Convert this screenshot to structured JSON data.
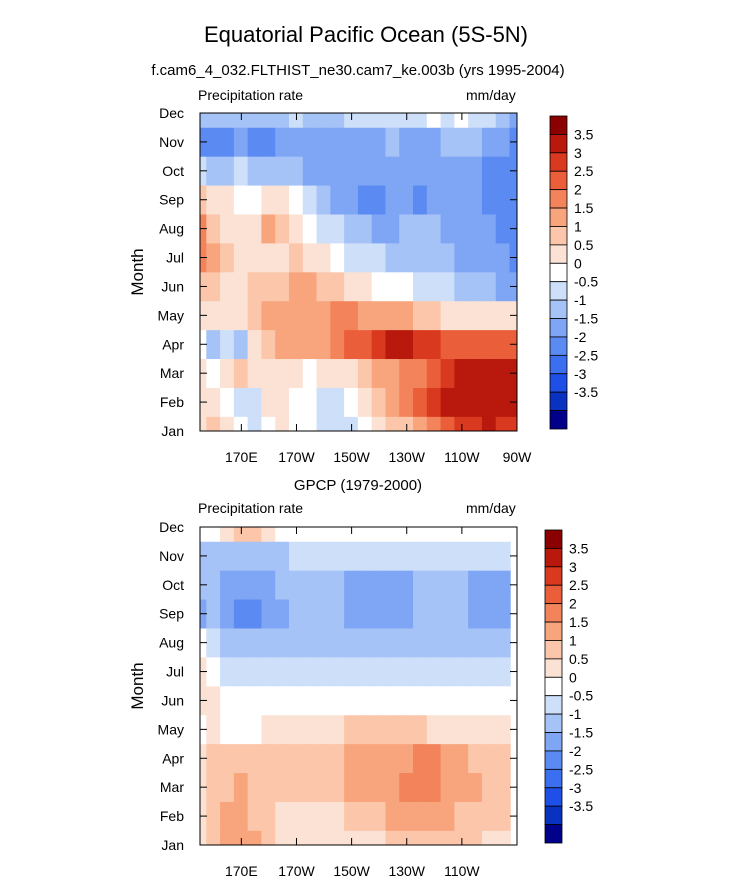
{
  "title": "Equatorial Pacific Ocean (5S-5N)",
  "colorbar": {
    "colors": [
      "#00008b",
      "#0a32c0",
      "#1e4fe6",
      "#3c6ef0",
      "#5a8af2",
      "#7fa6f5",
      "#a6c3f7",
      "#cddff9",
      "#ffffff",
      "#fbe2d4",
      "#fbc6aa",
      "#f8a57e",
      "#f2835a",
      "#ea5f3a",
      "#d9391f",
      "#b8190c",
      "#8b0000"
    ],
    "labels": [
      "-3.5",
      "-3",
      "-2.5",
      "-2",
      "-1.5",
      "-1",
      "-0.5",
      "0",
      "0.5",
      "1",
      "1.5",
      "2",
      "2.5",
      "3",
      "3.5"
    ]
  },
  "panels": [
    {
      "title": "f.cam6_4_032.FLTHIST_ne30.cam7_ke.003b (yrs 1995-2004)",
      "left_label": "Precipitation rate",
      "right_label": "mm/day",
      "ylabel": "Month",
      "xticks": [
        "170E",
        "170W",
        "150W",
        "130W",
        "110W",
        "90W"
      ]
    },
    {
      "title": "GPCP (1979-2000)",
      "left_label": "Precipitation rate",
      "right_label": "mm/day",
      "ylabel": "Month",
      "xticks": [
        "170E",
        "170W",
        "150W",
        "130W",
        "110W"
      ]
    }
  ],
  "chart_data": [
    {
      "type": "heatmap",
      "title": "f.cam6_4_032.FLTHIST_ne30.cam7_ke.003b (yrs 1995-2004)",
      "xlabel": "",
      "ylabel": "Month",
      "units": "mm/day",
      "x": [
        "155E",
        "160E",
        "165E",
        "170E",
        "175E",
        "180",
        "175W",
        "170W",
        "165W",
        "160W",
        "155W",
        "150W",
        "145W",
        "140W",
        "135W",
        "130W",
        "125W",
        "120W",
        "115W",
        "110W",
        "105W",
        "100W",
        "95W",
        "90W"
      ],
      "y": [
        "Jan",
        "Feb",
        "Mar",
        "Apr",
        "May",
        "Jun",
        "Jul",
        "Aug",
        "Sep",
        "Oct",
        "Nov",
        "Dec"
      ],
      "z": [
        [
          0.5,
          1.0,
          0.5,
          0.0,
          -0.5,
          0.0,
          0.5,
          0.0,
          0.0,
          -0.5,
          -0.5,
          -0.5,
          0.0,
          0.5,
          1.0,
          1.0,
          1.5,
          2.0,
          2.5,
          3.0,
          3.0,
          3.5,
          3.0,
          3.0
        ],
        [
          0.5,
          0.5,
          0.0,
          -0.5,
          -0.5,
          0.5,
          0.5,
          0.0,
          0.0,
          -0.5,
          -0.5,
          0.0,
          0.5,
          1.0,
          1.5,
          2.0,
          2.5,
          3.0,
          3.5,
          3.5,
          3.5,
          4.0,
          4.0,
          4.0
        ],
        [
          0.5,
          0.0,
          0.5,
          1.0,
          0.5,
          0.5,
          0.5,
          0.5,
          0.0,
          0.5,
          0.5,
          0.5,
          1.0,
          1.5,
          1.5,
          2.0,
          2.0,
          2.5,
          3.0,
          3.5,
          4.0,
          4.0,
          4.0,
          4.0
        ],
        [
          0.0,
          -1.0,
          -0.5,
          -1.0,
          0.5,
          1.0,
          1.5,
          1.5,
          1.5,
          1.5,
          2.0,
          2.5,
          2.5,
          3.0,
          3.5,
          3.5,
          3.0,
          3.0,
          2.5,
          2.5,
          2.5,
          2.5,
          2.5,
          2.5
        ],
        [
          0.5,
          0.5,
          0.5,
          0.5,
          1.0,
          1.5,
          1.5,
          1.5,
          1.5,
          1.5,
          2.0,
          2.0,
          1.5,
          1.5,
          1.5,
          1.5,
          1.0,
          1.0,
          0.5,
          0.5,
          0.5,
          0.5,
          0.5,
          0.5
        ],
        [
          1.0,
          1.0,
          0.5,
          0.5,
          1.0,
          1.0,
          1.0,
          1.5,
          1.5,
          1.0,
          1.0,
          0.5,
          0.5,
          0.0,
          0.0,
          0.0,
          -0.5,
          -0.5,
          -0.5,
          -1.0,
          -1.0,
          -1.0,
          -1.5,
          -1.5
        ],
        [
          2.0,
          1.5,
          1.0,
          0.5,
          0.5,
          0.5,
          0.5,
          1.0,
          0.5,
          0.5,
          0.0,
          -0.5,
          -0.5,
          -0.5,
          -1.0,
          -1.0,
          -1.0,
          -1.0,
          -1.0,
          -1.5,
          -1.5,
          -1.5,
          -1.5,
          -2.0
        ],
        [
          2.0,
          1.0,
          0.5,
          0.5,
          0.5,
          1.5,
          1.0,
          0.5,
          0.0,
          -0.5,
          -0.5,
          -1.0,
          -1.0,
          -1.5,
          -1.5,
          -1.0,
          -1.0,
          -1.0,
          -1.5,
          -1.5,
          -1.5,
          -1.5,
          -2.0,
          -2.0
        ],
        [
          1.0,
          0.5,
          0.5,
          0.0,
          0.0,
          0.5,
          0.5,
          0.0,
          -0.5,
          -1.0,
          -1.5,
          -1.5,
          -2.0,
          -2.0,
          -1.5,
          -1.5,
          -2.0,
          -1.5,
          -1.5,
          -1.5,
          -1.5,
          -2.0,
          -2.0,
          -2.0
        ],
        [
          -0.5,
          -1.0,
          -1.0,
          -0.5,
          -1.0,
          -1.0,
          -1.0,
          -1.0,
          -1.5,
          -1.5,
          -1.5,
          -1.5,
          -1.5,
          -1.5,
          -1.5,
          -1.5,
          -1.5,
          -1.5,
          -1.5,
          -1.5,
          -1.5,
          -2.0,
          -2.0,
          -2.0
        ],
        [
          -2.0,
          -2.0,
          -2.0,
          -1.5,
          -2.0,
          -2.0,
          -1.5,
          -1.5,
          -1.5,
          -1.5,
          -1.5,
          -1.5,
          -1.5,
          -1.5,
          -1.0,
          -1.5,
          -1.5,
          -1.5,
          -1.0,
          -1.0,
          -1.0,
          -1.5,
          -1.5,
          -2.0
        ],
        [
          -1.0,
          -1.0,
          -1.0,
          -1.0,
          -1.0,
          -1.0,
          -1.0,
          -0.5,
          -1.0,
          -1.0,
          -1.0,
          -0.5,
          -0.5,
          -0.5,
          -0.5,
          -0.5,
          -0.5,
          0.0,
          -0.5,
          0.0,
          -0.5,
          -0.5,
          -1.0,
          -1.5
        ]
      ],
      "levels": [
        -3.5,
        -3,
        -2.5,
        -2,
        -1.5,
        -1,
        -0.5,
        0,
        0.5,
        1,
        1.5,
        2,
        2.5,
        3,
        3.5
      ],
      "xlim": [
        "155E",
        "90W"
      ],
      "ylim": [
        "Jan",
        "Dec"
      ]
    },
    {
      "type": "heatmap",
      "title": "GPCP (1979-2000)",
      "xlabel": "",
      "ylabel": "Month",
      "units": "mm/day",
      "x": [
        "155E",
        "160E",
        "165E",
        "170E",
        "175E",
        "180",
        "175W",
        "170W",
        "165W",
        "160W",
        "155W",
        "150W",
        "145W",
        "140W",
        "135W",
        "130W",
        "125W",
        "120W",
        "115W",
        "110W",
        "105W",
        "100W",
        "95W"
      ],
      "y": [
        "Jan",
        "Feb",
        "Mar",
        "Apr",
        "May",
        "Jun",
        "Jul",
        "Aug",
        "Sep",
        "Oct",
        "Nov",
        "Dec"
      ],
      "z": [
        [
          0.5,
          1.0,
          1.5,
          1.5,
          1.5,
          1.0,
          0.5,
          0.5,
          0.5,
          0.5,
          0.5,
          0.5,
          0.5,
          0.5,
          1.0,
          1.0,
          1.0,
          1.0,
          1.0,
          1.0,
          1.0,
          0.5,
          0.5
        ],
        [
          0.5,
          1.0,
          1.5,
          1.5,
          1.0,
          1.0,
          0.5,
          0.5,
          0.5,
          0.5,
          0.5,
          1.0,
          1.0,
          1.0,
          1.5,
          1.5,
          1.5,
          1.5,
          1.5,
          1.0,
          1.0,
          1.0,
          1.0
        ],
        [
          0.5,
          1.0,
          1.0,
          1.5,
          1.0,
          1.0,
          1.0,
          1.0,
          1.0,
          1.0,
          1.0,
          1.5,
          1.5,
          1.5,
          1.5,
          2.0,
          2.0,
          2.0,
          1.5,
          1.5,
          1.5,
          1.0,
          1.0
        ],
        [
          0.5,
          1.0,
          1.0,
          1.0,
          1.0,
          1.0,
          1.0,
          1.0,
          1.0,
          1.0,
          1.0,
          1.5,
          1.5,
          1.5,
          1.5,
          1.5,
          2.0,
          2.0,
          1.5,
          1.5,
          1.0,
          1.0,
          1.0
        ],
        [
          0.0,
          0.5,
          0.0,
          0.0,
          0.0,
          0.5,
          0.5,
          0.5,
          0.5,
          0.5,
          0.5,
          1.0,
          1.0,
          1.0,
          1.0,
          1.0,
          1.0,
          0.5,
          0.5,
          0.5,
          0.5,
          0.5,
          0.5
        ],
        [
          0.5,
          0.5,
          0.0,
          0.0,
          0.0,
          0.0,
          0.0,
          0.0,
          0.0,
          0.0,
          0.0,
          0.0,
          0.0,
          0.0,
          0.0,
          0.0,
          0.0,
          0.0,
          0.0,
          0.0,
          0.0,
          0.0,
          0.0
        ],
        [
          0.5,
          0.0,
          -0.5,
          -0.5,
          -0.5,
          -0.5,
          -0.5,
          -0.5,
          -0.5,
          -0.5,
          -0.5,
          -0.5,
          -0.5,
          -0.5,
          -0.5,
          -0.5,
          -0.5,
          -0.5,
          -0.5,
          -0.5,
          -0.5,
          -0.5,
          -0.5
        ],
        [
          0.0,
          -0.5,
          -1.0,
          -1.0,
          -1.0,
          -1.0,
          -1.0,
          -1.0,
          -1.0,
          -1.0,
          -1.0,
          -1.0,
          -1.0,
          -1.0,
          -1.0,
          -1.0,
          -1.0,
          -1.0,
          -1.0,
          -1.0,
          -1.0,
          -1.0,
          -1.0
        ],
        [
          -1.5,
          -1.0,
          -1.5,
          -2.0,
          -2.0,
          -1.5,
          -1.5,
          -1.0,
          -1.0,
          -1.0,
          -1.0,
          -1.5,
          -1.5,
          -1.5,
          -1.5,
          -1.5,
          -1.0,
          -1.0,
          -1.0,
          -1.0,
          -1.5,
          -1.5,
          -1.5
        ],
        [
          -1.0,
          -1.0,
          -1.5,
          -1.5,
          -1.5,
          -1.5,
          -1.0,
          -1.0,
          -1.0,
          -1.0,
          -1.0,
          -1.5,
          -1.5,
          -1.5,
          -1.5,
          -1.5,
          -1.0,
          -1.0,
          -1.0,
          -1.0,
          -1.5,
          -1.5,
          -1.5
        ],
        [
          -1.0,
          -1.0,
          -1.0,
          -1.0,
          -1.0,
          -1.0,
          -1.0,
          -0.5,
          -0.5,
          -0.5,
          -0.5,
          -0.5,
          -0.5,
          -0.5,
          -0.5,
          -0.5,
          -0.5,
          -0.5,
          -0.5,
          -0.5,
          -0.5,
          -0.5,
          -0.5
        ],
        [
          0.0,
          0.0,
          0.5,
          1.0,
          1.0,
          0.5,
          0.0,
          0.0,
          0.0,
          0.0,
          0.0,
          0.0,
          0.0,
          0.0,
          0.0,
          0.0,
          0.0,
          0.0,
          0.0,
          0.0,
          0.0,
          0.0,
          0.0
        ]
      ],
      "levels": [
        -3.5,
        -3,
        -2.5,
        -2,
        -1.5,
        -1,
        -0.5,
        0,
        0.5,
        1,
        1.5,
        2,
        2.5,
        3,
        3.5
      ],
      "xlim": [
        "155E",
        "95W"
      ],
      "ylim": [
        "Jan",
        "Dec"
      ]
    }
  ]
}
